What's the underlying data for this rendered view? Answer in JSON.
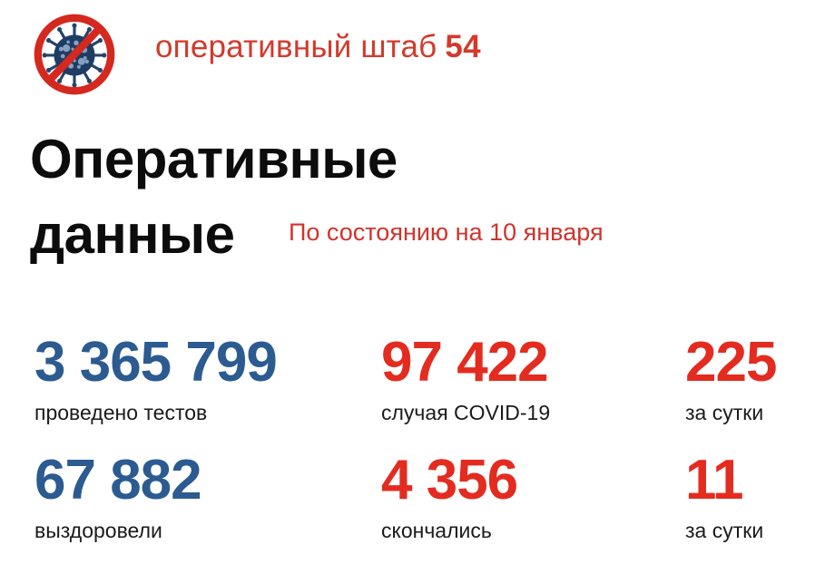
{
  "page": {
    "background": "#ffffff"
  },
  "header": {
    "icon_name": "no-virus-icon",
    "brand_text": "оперативный штаб",
    "brand_number": "54"
  },
  "title": {
    "line1": "Оперативные",
    "line2": "данные"
  },
  "subtitle": "По состоянию на 10 января",
  "stats": [
    {
      "id": "tests",
      "value": "3 365 799",
      "label": "проведено тестов",
      "color": "blue"
    },
    {
      "id": "cases-total",
      "value": "97 422",
      "label": "случая COVID-19",
      "color": "red"
    },
    {
      "id": "cases-daily",
      "value": "225",
      "label": "за сутки",
      "color": "red"
    },
    {
      "id": "recovered",
      "value": "67 882",
      "label": "выздоровели",
      "color": "blue"
    },
    {
      "id": "deaths-total",
      "value": "4 356",
      "label": "скончались",
      "color": "red"
    },
    {
      "id": "deaths-daily",
      "value": "11",
      "label": "за сутки",
      "color": "red"
    }
  ],
  "colors": {
    "accent_red": "#d23a2c",
    "number_red": "#e42b20",
    "number_blue": "#2b5b90",
    "title_black": "#0c0c0c",
    "label_dark": "#1b1b1b",
    "virus_body": "#1f3c63",
    "virus_spots": "#87a0c1",
    "prohibition_red": "#d5281e"
  },
  "chart_data": {
    "type": "table",
    "title": "Оперативные данные",
    "subtitle": "По состоянию на 10 января",
    "source_label": "оперативный штаб 54",
    "rows": [
      {
        "metric": "проведено тестов",
        "value": 3365799
      },
      {
        "metric": "случая COVID-19",
        "value": 97422
      },
      {
        "metric": "за сутки",
        "value": 225
      },
      {
        "metric": "выздоровели",
        "value": 67882
      },
      {
        "metric": "скончались",
        "value": 4356
      },
      {
        "metric": "за сутки",
        "value": 11
      }
    ]
  }
}
